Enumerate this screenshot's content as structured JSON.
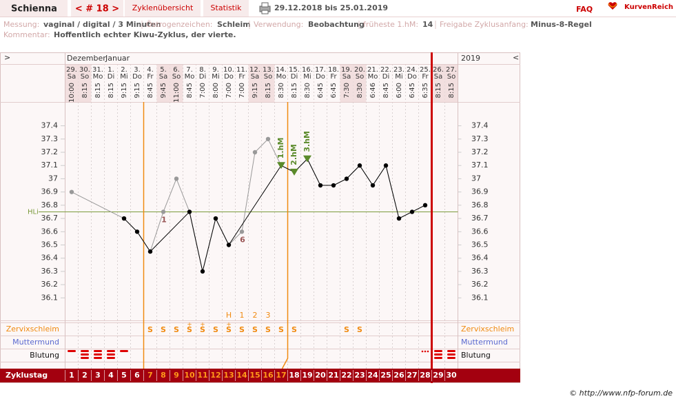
{
  "header": {
    "name": "Schienna",
    "cycle": "< # 18 >",
    "tabs": [
      "Zyklenübersicht",
      "Statistik"
    ],
    "period": "29.12.2018 bis 25.01.2019",
    "faq": "FAQ",
    "brand": "KurvenReich"
  },
  "info": [
    {
      "label": "Messung:",
      "value": "vaginal / digital / 3 Minuten"
    },
    {
      "label": "Östrogenzeichen:",
      "value": "Schleim"
    },
    {
      "label": "Verwendung:",
      "value": "Beobachtung"
    },
    {
      "label": "früheste 1.hM:",
      "value": "14"
    },
    {
      "label": "Freigabe Zyklusanfang:",
      "value": "Minus-8-Regel"
    }
  ],
  "comment": {
    "label": "Kommentar:",
    "value": "Hoffentlich echter Kiwu-Zyklus, der vierte."
  },
  "chart_data": {
    "type": "line",
    "nav_left": ">",
    "nav_right": "<",
    "months": [
      "Dezember",
      "Januar"
    ],
    "year": "2019",
    "dates": [
      "29.",
      "30.",
      "31.",
      "1.",
      "2.",
      "3.",
      "4.",
      "5.",
      "6.",
      "7.",
      "8.",
      "9.",
      "10.",
      "11.",
      "12.",
      "13.",
      "14.",
      "15.",
      "16.",
      "17.",
      "18.",
      "19.",
      "20.",
      "21.",
      "22.",
      "23.",
      "24.",
      "25.",
      "26.",
      "27."
    ],
    "weekdays": [
      "Sa",
      "So",
      "Mo",
      "Di",
      "Mi",
      "Do",
      "Fr",
      "Sa",
      "So",
      "Mo",
      "Di",
      "Mi",
      "Do",
      "Fr",
      "Sa",
      "So",
      "Mo",
      "Di",
      "Mi",
      "Do",
      "Fr",
      "Sa",
      "So",
      "Mo",
      "Di",
      "Mi",
      "Do",
      "Fr",
      "Sa",
      "So"
    ],
    "times": [
      "10:00",
      "8:15",
      "8:15",
      "8:15",
      "9:15",
      "9:15",
      "8:45",
      "9:45",
      "11:00",
      "8:45",
      "7:00",
      "8:00",
      "7:00",
      "7:00",
      "9:15",
      "8:15",
      "8:30",
      "8:15",
      "8:30",
      "6:45",
      "6:45",
      "7:30",
      "8:30",
      "6:46",
      "8:45",
      "6:00",
      "6:45",
      "6:35",
      "8:15",
      "8:15"
    ],
    "temperatures": [
      36.9,
      null,
      null,
      null,
      36.7,
      36.6,
      36.45,
      36.75,
      37.0,
      36.75,
      36.3,
      36.7,
      36.5,
      36.6,
      37.2,
      37.3,
      37.1,
      37.05,
      37.15,
      36.95,
      36.95,
      37.0,
      37.1,
      36.95,
      37.1,
      36.7,
      36.75,
      36.8,
      null,
      null
    ],
    "excluded": [
      true,
      false,
      false,
      false,
      false,
      false,
      false,
      true,
      true,
      false,
      false,
      false,
      false,
      true,
      true,
      true,
      false,
      false,
      false,
      false,
      false,
      false,
      false,
      false,
      false,
      false,
      false,
      false,
      false,
      false
    ],
    "ylim": [
      35.93,
      37.58
    ],
    "yticks": [
      36.1,
      36.2,
      36.3,
      36.4,
      36.5,
      36.6,
      36.7,
      36.8,
      36.9,
      37,
      37.1,
      37.2,
      37.3,
      37.4
    ],
    "coverline": {
      "label": "HLi",
      "value": 36.75
    },
    "point_labels": [
      null,
      null,
      null,
      null,
      null,
      null,
      null,
      "1",
      null,
      null,
      null,
      null,
      null,
      "6",
      null,
      null,
      null,
      null,
      null,
      null,
      null,
      null,
      null,
      null,
      null,
      null,
      null,
      null,
      null,
      null
    ],
    "hm_labels": [
      null,
      null,
      null,
      null,
      null,
      null,
      null,
      null,
      null,
      null,
      null,
      null,
      null,
      null,
      null,
      null,
      "1.hM",
      "2.hM",
      "3.hM",
      null,
      null,
      null,
      null,
      null,
      null,
      null,
      null,
      null,
      null,
      null
    ],
    "peak_labels": [
      null,
      null,
      null,
      null,
      null,
      null,
      null,
      null,
      null,
      null,
      null,
      null,
      "H",
      "1",
      "2",
      "3",
      null,
      null,
      null,
      null,
      null,
      null,
      null,
      null,
      null,
      null,
      null,
      null,
      null,
      null
    ],
    "row_labels": {
      "mucus": "Zervixschleim",
      "cervix": "Muttermund",
      "bleeding": "Blutung",
      "cycle_day": "Zyklustag"
    },
    "mucus": [
      null,
      null,
      null,
      null,
      null,
      null,
      "S",
      "S",
      "S",
      "S",
      "S",
      "S",
      "S",
      "S",
      "S",
      "S",
      "S",
      "S",
      null,
      null,
      null,
      "S",
      "S",
      null,
      null,
      null,
      null,
      null,
      null,
      null
    ],
    "mucus_plus": [
      null,
      null,
      null,
      null,
      null,
      null,
      null,
      null,
      null,
      "+",
      "+",
      null,
      "+",
      null,
      null,
      null,
      null,
      null,
      null,
      null,
      null,
      null,
      null,
      null,
      null,
      null,
      null,
      null,
      null,
      null
    ],
    "bleeding": [
      1,
      3,
      3,
      3,
      1,
      null,
      null,
      null,
      null,
      null,
      null,
      null,
      null,
      null,
      null,
      null,
      null,
      null,
      null,
      null,
      null,
      null,
      null,
      null,
      null,
      null,
      null,
      0,
      3,
      3
    ],
    "cycle_days": [
      1,
      2,
      3,
      4,
      5,
      6,
      7,
      8,
      9,
      10,
      11,
      12,
      13,
      14,
      15,
      16,
      17,
      18,
      19,
      20,
      21,
      22,
      23,
      24,
      25,
      26,
      27,
      28,
      29,
      30
    ],
    "fertile_days": [
      7,
      17
    ],
    "cycle_end_day": 28,
    "footer": "© http://www.nfp-forum.de"
  }
}
